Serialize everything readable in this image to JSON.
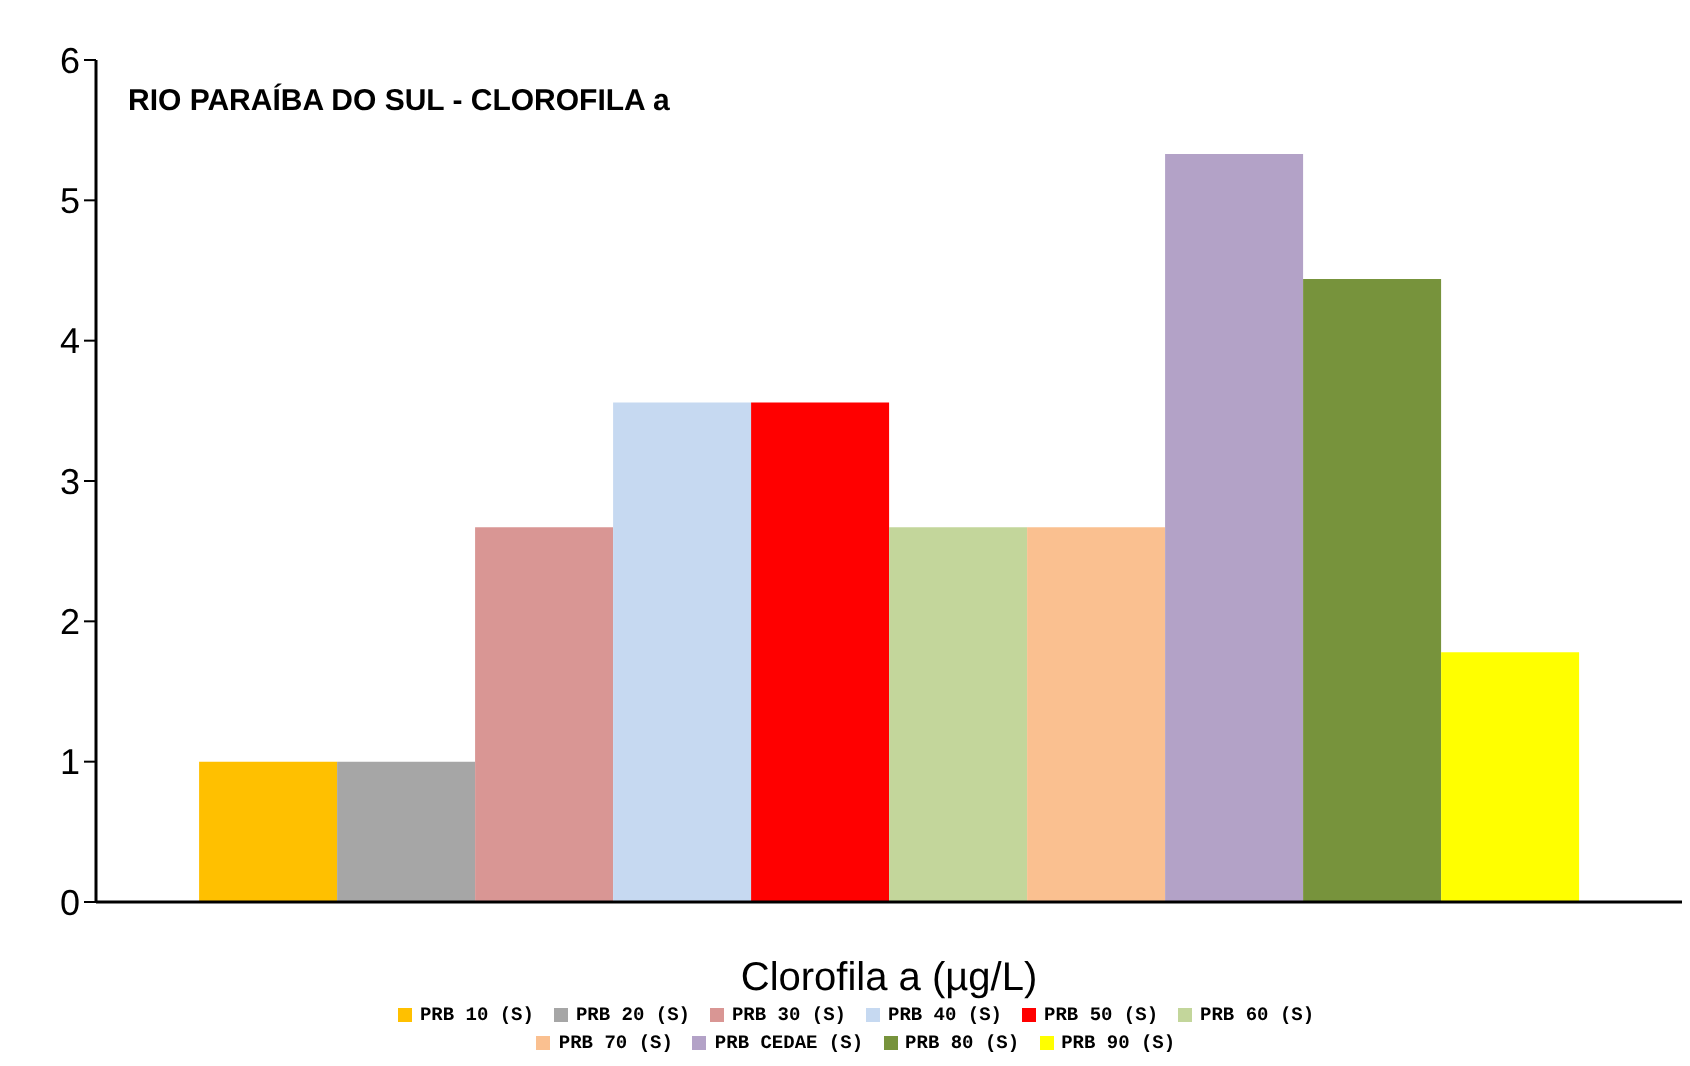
{
  "chart_data": {
    "type": "bar",
    "title": "RIO PARAÍBA DO SUL - CLOROFILA a",
    "xlabel": "Clorofila a (µg/L)",
    "categories": [
      null
    ],
    "series": [
      {
        "name": "PRB 10 (S)",
        "color": "#ffc000",
        "values": [
          1.0
        ]
      },
      {
        "name": "PRB 20 (S)",
        "color": "#a6a6a6",
        "values": [
          1.0
        ]
      },
      {
        "name": "PRB 30 (S)",
        "color": "#d99694",
        "values": [
          2.67
        ]
      },
      {
        "name": "PRB 40 (S)",
        "color": "#c6d9f1",
        "values": [
          3.56
        ]
      },
      {
        "name": "PRB 50 (S)",
        "color": "#ff0000",
        "values": [
          3.56
        ]
      },
      {
        "name": "PRB 60 (S)",
        "color": "#c3d69b",
        "values": [
          2.67
        ]
      },
      {
        "name": "PRB 70 (S)",
        "color": "#fac090",
        "values": [
          2.67
        ]
      },
      {
        "name": "PRB CEDAE (S)",
        "color": "#b3a2c7",
        "values": [
          5.33
        ]
      },
      {
        "name": "PRB 80 (S)",
        "color": "#77933c",
        "values": [
          4.44
        ]
      },
      {
        "name": "PRB 90 (S)",
        "color": "#ffff00",
        "values": [
          1.78
        ]
      }
    ],
    "ylim": [
      0,
      6
    ],
    "yticks": [
      0,
      1,
      2,
      3,
      4,
      5,
      6
    ],
    "grid": false,
    "legend": "bottom"
  }
}
